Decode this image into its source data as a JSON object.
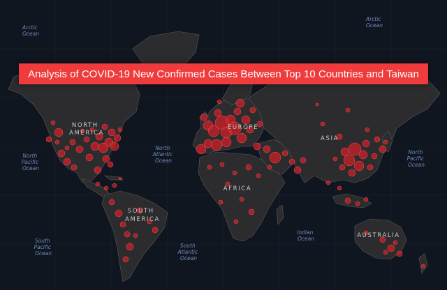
{
  "title": "Analysis of COVID-19 New Confirmed Cases Between Top 10 Countries and Taiwan",
  "ocean_labels": [
    {
      "id": "arctic-ocean-west",
      "lines": [
        "Arctic",
        "Ocean"
      ]
    },
    {
      "id": "arctic-ocean-east",
      "lines": [
        "Arctic",
        "Ocean"
      ]
    },
    {
      "id": "north-pacific-ocean-west",
      "lines": [
        "North",
        "Pacific",
        "Ocean"
      ]
    },
    {
      "id": "north-pacific-ocean-east",
      "lines": [
        "North",
        "Pacific",
        "Ocean"
      ]
    },
    {
      "id": "north-atlantic-ocean",
      "lines": [
        "North",
        "Atlantic",
        "Ocean"
      ]
    },
    {
      "id": "south-atlantic-ocean",
      "lines": [
        "South",
        "Atlantic",
        "Ocean"
      ]
    },
    {
      "id": "south-pacific-ocean",
      "lines": [
        "South",
        "Pacific",
        "Ocean"
      ]
    },
    {
      "id": "indian-ocean",
      "lines": [
        "Indian",
        "Ocean"
      ]
    }
  ],
  "continent_labels": [
    {
      "id": "north-america",
      "lines": [
        "NORTH",
        "AMERICA"
      ]
    },
    {
      "id": "south-america",
      "lines": [
        "SOUTH",
        "AMERICA"
      ]
    },
    {
      "id": "europe",
      "lines": [
        "EUROPE"
      ]
    },
    {
      "id": "africa",
      "lines": [
        "AFRICA"
      ]
    },
    {
      "id": "asia",
      "lines": [
        "ASIA"
      ]
    },
    {
      "id": "australia",
      "lines": [
        "AUSTRALIA"
      ]
    }
  ],
  "colors": {
    "background": "#101620",
    "land": "#2c2c2e",
    "border": "#5a5a60",
    "bubble": "#d61e28",
    "banner": "#ef3b3b",
    "ocean_text": "#6f88b8"
  }
}
